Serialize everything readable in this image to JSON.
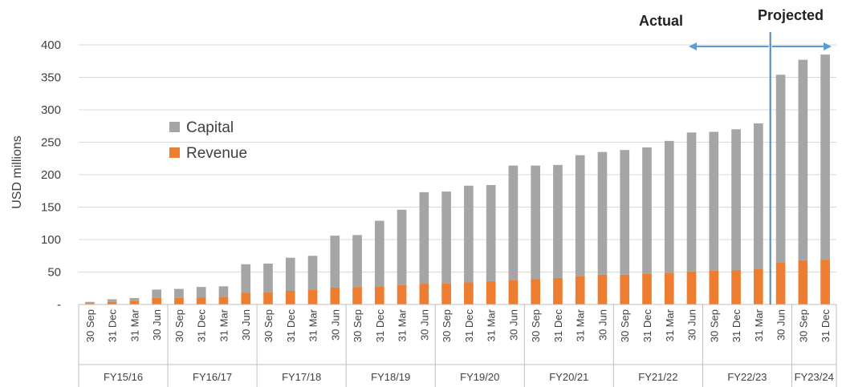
{
  "chart_data": {
    "type": "bar",
    "stacked": true,
    "ylabel": "USD millions",
    "xlabel": "",
    "ylim": [
      0,
      400
    ],
    "yticks": [
      "-",
      "50",
      "100",
      "150",
      "200",
      "250",
      "300",
      "350",
      "400"
    ],
    "grid": true,
    "legend_position": "left",
    "categories": [
      "30 Sep",
      "31 Dec",
      "31 Mar",
      "30 Jun",
      "30 Sep",
      "31 Dec",
      "31 Mar",
      "30 Jun",
      "30 Sep",
      "31 Dec",
      "31 Mar",
      "30 Jun",
      "30 Sep",
      "31 Dec",
      "31 Mar",
      "30 Jun",
      "30 Sep",
      "31 Dec",
      "31 Mar",
      "30 Jun",
      "30 Sep",
      "31 Dec",
      "31 Mar",
      "30 Jun",
      "30 Sep",
      "31 Dec",
      "31 Mar",
      "30 Jun",
      "30 Sep",
      "31 Dec",
      "31 Mar",
      "30 Jun",
      "30 Sep",
      "31 Dec"
    ],
    "groups": [
      {
        "label": "FY15/16",
        "count": 4
      },
      {
        "label": "FY16/17",
        "count": 4
      },
      {
        "label": "FY17/18",
        "count": 4
      },
      {
        "label": "FY18/19",
        "count": 4
      },
      {
        "label": "FY19/20",
        "count": 4
      },
      {
        "label": "FY20/21",
        "count": 4
      },
      {
        "label": "FY21/22",
        "count": 4
      },
      {
        "label": "FY22/23",
        "count": 4
      },
      {
        "label": "FY23/24",
        "count": 2
      }
    ],
    "series": [
      {
        "name": "Revenue",
        "color": "#ED7D31",
        "values": [
          2,
          4,
          5,
          10,
          10,
          11,
          12,
          18,
          19,
          21,
          23,
          26,
          27,
          28,
          30,
          32,
          33,
          34,
          36,
          38,
          39,
          41,
          44,
          46,
          46,
          47,
          49,
          51,
          52,
          53,
          55,
          65,
          68,
          69
        ]
      },
      {
        "name": "Capital",
        "color": "#A5A5A5",
        "values": [
          2,
          4,
          5,
          13,
          14,
          16,
          16,
          44,
          44,
          51,
          52,
          80,
          80,
          101,
          116,
          141,
          141,
          149,
          148,
          176,
          175,
          174,
          186,
          189,
          192,
          195,
          203,
          214,
          214,
          217,
          224,
          289,
          309,
          316
        ]
      }
    ],
    "annotations": {
      "actual_label": "Actual",
      "projected_label": "Projected",
      "divider_after_category_index": 30
    }
  }
}
